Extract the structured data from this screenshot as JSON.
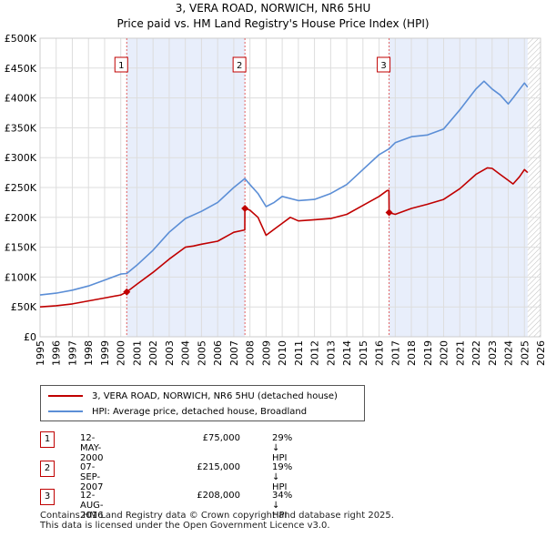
{
  "title_line1": "3, VERA ROAD, NORWICH, NR6 5HU",
  "title_line2": "Price paid vs. HM Land Registry's House Price Index (HPI)",
  "chart_data": {
    "type": "line",
    "xlim": [
      1995,
      2026
    ],
    "ylim": [
      0,
      500000
    ],
    "x_ticks": [
      1995,
      1996,
      1997,
      1998,
      1999,
      2000,
      2001,
      2002,
      2003,
      2004,
      2005,
      2006,
      2007,
      2008,
      2009,
      2010,
      2011,
      2012,
      2013,
      2014,
      2015,
      2016,
      2017,
      2018,
      2019,
      2020,
      2021,
      2022,
      2023,
      2024,
      2025,
      2026
    ],
    "y_ticks": [
      0,
      50000,
      100000,
      150000,
      200000,
      250000,
      300000,
      350000,
      400000,
      450000,
      500000
    ],
    "y_tick_labels": [
      "£0",
      "£50K",
      "£100K",
      "£150K",
      "£200K",
      "£250K",
      "£300K",
      "£350K",
      "£400K",
      "£450K",
      "£500K"
    ],
    "grid": true,
    "series": [
      {
        "name": "3, VERA ROAD, NORWICH, NR6 5HU (detached house)",
        "color": "#c00000",
        "points": [
          [
            1995.0,
            50000
          ],
          [
            1996.0,
            52000
          ],
          [
            1997.0,
            55000
          ],
          [
            1998.0,
            60000
          ],
          [
            1999.0,
            65000
          ],
          [
            2000.0,
            70000
          ],
          [
            2000.37,
            75000
          ],
          [
            2001.0,
            88000
          ],
          [
            2002.0,
            108000
          ],
          [
            2003.0,
            130000
          ],
          [
            2004.0,
            150000
          ],
          [
            2004.5,
            152000
          ],
          [
            2005.0,
            155000
          ],
          [
            2006.0,
            160000
          ],
          [
            2007.0,
            175000
          ],
          [
            2007.68,
            179000
          ],
          [
            2007.69,
            215000
          ],
          [
            2008.0,
            212000
          ],
          [
            2008.5,
            200000
          ],
          [
            2009.0,
            170000
          ],
          [
            2009.5,
            180000
          ],
          [
            2010.0,
            190000
          ],
          [
            2010.5,
            200000
          ],
          [
            2011.0,
            194000
          ],
          [
            2012.0,
            196000
          ],
          [
            2013.0,
            198000
          ],
          [
            2014.0,
            205000
          ],
          [
            2015.0,
            220000
          ],
          [
            2016.0,
            235000
          ],
          [
            2016.5,
            245000
          ],
          [
            2016.61,
            245000
          ],
          [
            2016.62,
            208000
          ],
          [
            2017.0,
            205000
          ],
          [
            2018.0,
            215000
          ],
          [
            2019.0,
            222000
          ],
          [
            2020.0,
            230000
          ],
          [
            2021.0,
            248000
          ],
          [
            2022.0,
            272000
          ],
          [
            2022.7,
            283000
          ],
          [
            2023.0,
            282000
          ],
          [
            2023.5,
            272000
          ],
          [
            2024.0,
            262000
          ],
          [
            2024.3,
            256000
          ],
          [
            2024.7,
            268000
          ],
          [
            2025.0,
            280000
          ],
          [
            2025.2,
            275000
          ]
        ],
        "sale_points": [
          [
            2000.37,
            75000
          ],
          [
            2007.69,
            215000
          ],
          [
            2016.62,
            208000
          ]
        ]
      },
      {
        "name": "HPI: Average price, detached house, Broadland",
        "color": "#5b8ed6",
        "points": [
          [
            1995.0,
            70000
          ],
          [
            1996.0,
            73000
          ],
          [
            1997.0,
            78000
          ],
          [
            1998.0,
            85000
          ],
          [
            1999.0,
            95000
          ],
          [
            2000.0,
            105000
          ],
          [
            2000.37,
            106000
          ],
          [
            2001.0,
            120000
          ],
          [
            2002.0,
            145000
          ],
          [
            2003.0,
            175000
          ],
          [
            2004.0,
            198000
          ],
          [
            2005.0,
            210000
          ],
          [
            2006.0,
            225000
          ],
          [
            2007.0,
            250000
          ],
          [
            2007.68,
            265000
          ],
          [
            2008.0,
            255000
          ],
          [
            2008.5,
            240000
          ],
          [
            2009.0,
            218000
          ],
          [
            2009.5,
            225000
          ],
          [
            2010.0,
            235000
          ],
          [
            2011.0,
            228000
          ],
          [
            2012.0,
            230000
          ],
          [
            2013.0,
            240000
          ],
          [
            2014.0,
            255000
          ],
          [
            2015.0,
            280000
          ],
          [
            2016.0,
            305000
          ],
          [
            2016.62,
            315000
          ],
          [
            2017.0,
            325000
          ],
          [
            2018.0,
            335000
          ],
          [
            2019.0,
            338000
          ],
          [
            2020.0,
            348000
          ],
          [
            2021.0,
            380000
          ],
          [
            2022.0,
            415000
          ],
          [
            2022.5,
            428000
          ],
          [
            2023.0,
            415000
          ],
          [
            2023.5,
            405000
          ],
          [
            2024.0,
            390000
          ],
          [
            2024.3,
            400000
          ],
          [
            2025.0,
            425000
          ],
          [
            2025.2,
            418000
          ]
        ]
      }
    ],
    "markers": [
      {
        "label": "1",
        "x": 2000.37
      },
      {
        "label": "2",
        "x": 2007.69
      },
      {
        "label": "3",
        "x": 2016.62
      }
    ]
  },
  "legend": {
    "entries": [
      {
        "label": "3, VERA ROAD, NORWICH, NR6 5HU (detached house)",
        "color": "#c00000"
      },
      {
        "label": "HPI: Average price, detached house, Broadland",
        "color": "#5b8ed6"
      }
    ]
  },
  "transactions": [
    {
      "num": "1",
      "date": "12-MAY-2000",
      "price": "£75,000",
      "hpi": "29% ↓ HPI"
    },
    {
      "num": "2",
      "date": "07-SEP-2007",
      "price": "£215,000",
      "hpi": "19% ↓ HPI"
    },
    {
      "num": "3",
      "date": "12-AUG-2016",
      "price": "£208,000",
      "hpi": "34% ↓ HPI"
    }
  ],
  "footer_line1": "Contains HM Land Registry data © Crown copyright and database right 2025.",
  "footer_line2": "This data is licensed under the Open Government Licence v3.0."
}
